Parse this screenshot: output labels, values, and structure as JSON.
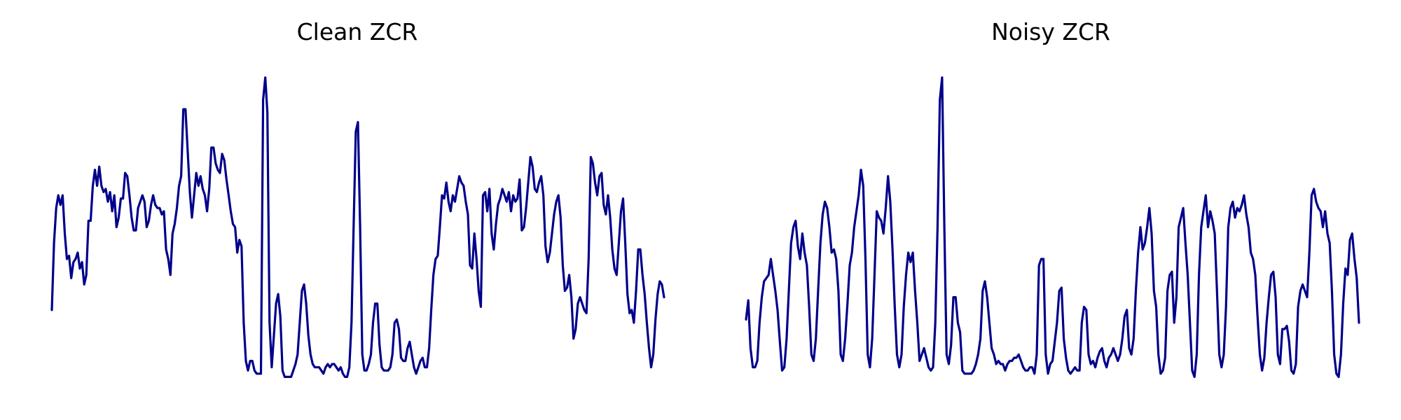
{
  "line_color": "#00008B",
  "background": "#FFFFFF",
  "chart_data": [
    {
      "type": "line",
      "title": "Clean ZCR",
      "xlabel": "",
      "ylabel": "",
      "axes_visible": false,
      "grid": false,
      "ylim": [
        0,
        1
      ],
      "series": [
        {
          "values": [
            0.24,
            0.45,
            0.56,
            0.6,
            0.57,
            0.6,
            0.48,
            0.4,
            0.41,
            0.34,
            0.39,
            0.4,
            0.42,
            0.37,
            0.39,
            0.32,
            0.35,
            0.52,
            0.52,
            0.63,
            0.68,
            0.63,
            0.69,
            0.63,
            0.61,
            0.62,
            0.58,
            0.61,
            0.55,
            0.6,
            0.5,
            0.53,
            0.59,
            0.59,
            0.67,
            0.66,
            0.6,
            0.53,
            0.49,
            0.49,
            0.56,
            0.58,
            0.6,
            0.58,
            0.5,
            0.52,
            0.57,
            0.6,
            0.57,
            0.56,
            0.56,
            0.54,
            0.55,
            0.43,
            0.4,
            0.35,
            0.48,
            0.51,
            0.56,
            0.63,
            0.66,
            0.87,
            0.87,
            0.74,
            0.61,
            0.53,
            0.6,
            0.67,
            0.63,
            0.66,
            0.62,
            0.6,
            0.55,
            0.62,
            0.75,
            0.75,
            0.7,
            0.68,
            0.67,
            0.73,
            0.71,
            0.65,
            0.6,
            0.55,
            0.51,
            0.5,
            0.42,
            0.46,
            0.44,
            0.2,
            0.08,
            0.05,
            0.08,
            0.08,
            0.05,
            0.04,
            0.04,
            0.04,
            0.9,
            0.97,
            0.86,
            0.2,
            0.06,
            0.16,
            0.26,
            0.29,
            0.22,
            0.05,
            0.03,
            0.03,
            0.03,
            0.03,
            0.05,
            0.07,
            0.1,
            0.2,
            0.3,
            0.32,
            0.26,
            0.16,
            0.1,
            0.07,
            0.06,
            0.06,
            0.06,
            0.05,
            0.04,
            0.06,
            0.07,
            0.06,
            0.07,
            0.07,
            0.06,
            0.05,
            0.06,
            0.04,
            0.03,
            0.03,
            0.06,
            0.2,
            0.5,
            0.8,
            0.83,
            0.5,
            0.1,
            0.05,
            0.05,
            0.07,
            0.1,
            0.2,
            0.26,
            0.26,
            0.13,
            0.06,
            0.05,
            0.05,
            0.05,
            0.06,
            0.1,
            0.2,
            0.21,
            0.18,
            0.09,
            0.08,
            0.08,
            0.12,
            0.14,
            0.1,
            0.06,
            0.04,
            0.06,
            0.08,
            0.09,
            0.06,
            0.06,
            0.12,
            0.24,
            0.35,
            0.4,
            0.41,
            0.5,
            0.6,
            0.59,
            0.64,
            0.58,
            0.55,
            0.6,
            0.58,
            0.62,
            0.66,
            0.64,
            0.63,
            0.58,
            0.54,
            0.38,
            0.37,
            0.48,
            0.4,
            0.3,
            0.25,
            0.6,
            0.61,
            0.55,
            0.62,
            0.48,
            0.43,
            0.51,
            0.57,
            0.59,
            0.62,
            0.6,
            0.58,
            0.61,
            0.55,
            0.6,
            0.58,
            0.59,
            0.65,
            0.49,
            0.5,
            0.56,
            0.64,
            0.72,
            0.69,
            0.62,
            0.61,
            0.64,
            0.66,
            0.6,
            0.44,
            0.39,
            0.42,
            0.48,
            0.54,
            0.58,
            0.6,
            0.53,
            0.38,
            0.3,
            0.31,
            0.35,
            0.28,
            0.15,
            0.18,
            0.26,
            0.28,
            0.26,
            0.24,
            0.23,
            0.4,
            0.72,
            0.7,
            0.64,
            0.6,
            0.66,
            0.67,
            0.57,
            0.54,
            0.6,
            0.53,
            0.43,
            0.37,
            0.35,
            0.45,
            0.55,
            0.59,
            0.45,
            0.29,
            0.23,
            0.24,
            0.2,
            0.3,
            0.43,
            0.43,
            0.35,
            0.29,
            0.2,
            0.12,
            0.06,
            0.1,
            0.21,
            0.29,
            0.33,
            0.32,
            0.28
          ]
        }
      ]
    },
    {
      "type": "line",
      "title": "Noisy ZCR",
      "xlabel": "",
      "ylabel": "",
      "axes_visible": false,
      "grid": false,
      "ylim": [
        0,
        1
      ],
      "series": [
        {
          "values": [
            0.21,
            0.27,
            0.12,
            0.06,
            0.06,
            0.08,
            0.2,
            0.28,
            0.33,
            0.34,
            0.35,
            0.4,
            0.35,
            0.3,
            0.24,
            0.14,
            0.05,
            0.06,
            0.15,
            0.3,
            0.45,
            0.5,
            0.52,
            0.44,
            0.4,
            0.48,
            0.42,
            0.38,
            0.25,
            0.1,
            0.08,
            0.15,
            0.3,
            0.45,
            0.54,
            0.58,
            0.56,
            0.5,
            0.42,
            0.43,
            0.4,
            0.3,
            0.1,
            0.08,
            0.15,
            0.26,
            0.38,
            0.42,
            0.5,
            0.55,
            0.6,
            0.68,
            0.63,
            0.4,
            0.1,
            0.06,
            0.15,
            0.35,
            0.55,
            0.53,
            0.52,
            0.48,
            0.56,
            0.66,
            0.58,
            0.43,
            0.25,
            0.1,
            0.06,
            0.1,
            0.25,
            0.35,
            0.42,
            0.39,
            0.42,
            0.3,
            0.2,
            0.08,
            0.1,
            0.12,
            0.09,
            0.06,
            0.05,
            0.06,
            0.2,
            0.5,
            0.9,
            0.97,
            0.5,
            0.1,
            0.07,
            0.13,
            0.28,
            0.28,
            0.2,
            0.17,
            0.05,
            0.04,
            0.04,
            0.04,
            0.04,
            0.05,
            0.07,
            0.1,
            0.15,
            0.3,
            0.33,
            0.28,
            0.2,
            0.12,
            0.1,
            0.07,
            0.08,
            0.07,
            0.07,
            0.05,
            0.07,
            0.08,
            0.08,
            0.09,
            0.09,
            0.1,
            0.08,
            0.06,
            0.05,
            0.05,
            0.06,
            0.06,
            0.04,
            0.1,
            0.38,
            0.4,
            0.4,
            0.1,
            0.04,
            0.07,
            0.08,
            0.14,
            0.2,
            0.3,
            0.31,
            0.15,
            0.09,
            0.05,
            0.04,
            0.05,
            0.06,
            0.05,
            0.05,
            0.2,
            0.25,
            0.24,
            0.1,
            0.07,
            0.08,
            0.06,
            0.09,
            0.11,
            0.12,
            0.08,
            0.06,
            0.09,
            0.1,
            0.12,
            0.1,
            0.08,
            0.1,
            0.15,
            0.22,
            0.24,
            0.12,
            0.1,
            0.15,
            0.3,
            0.42,
            0.5,
            0.43,
            0.45,
            0.5,
            0.56,
            0.48,
            0.3,
            0.25,
            0.1,
            0.04,
            0.05,
            0.09,
            0.3,
            0.35,
            0.36,
            0.2,
            0.28,
            0.5,
            0.53,
            0.56,
            0.45,
            0.35,
            0.2,
            0.05,
            0.03,
            0.1,
            0.35,
            0.5,
            0.55,
            0.6,
            0.5,
            0.55,
            0.52,
            0.48,
            0.3,
            0.1,
            0.06,
            0.1,
            0.25,
            0.5,
            0.56,
            0.58,
            0.53,
            0.56,
            0.55,
            0.57,
            0.6,
            0.54,
            0.5,
            0.42,
            0.4,
            0.35,
            0.22,
            0.1,
            0.05,
            0.09,
            0.2,
            0.28,
            0.35,
            0.36,
            0.28,
            0.1,
            0.07,
            0.18,
            0.18,
            0.19,
            0.14,
            0.05,
            0.04,
            0.07,
            0.25,
            0.3,
            0.32,
            0.3,
            0.28,
            0.42,
            0.6,
            0.62,
            0.58,
            0.56,
            0.55,
            0.5,
            0.55,
            0.48,
            0.45,
            0.3,
            0.1,
            0.04,
            0.03,
            0.1,
            0.26,
            0.37,
            0.35,
            0.46,
            0.48,
            0.4,
            0.34,
            0.2
          ]
        }
      ]
    }
  ]
}
